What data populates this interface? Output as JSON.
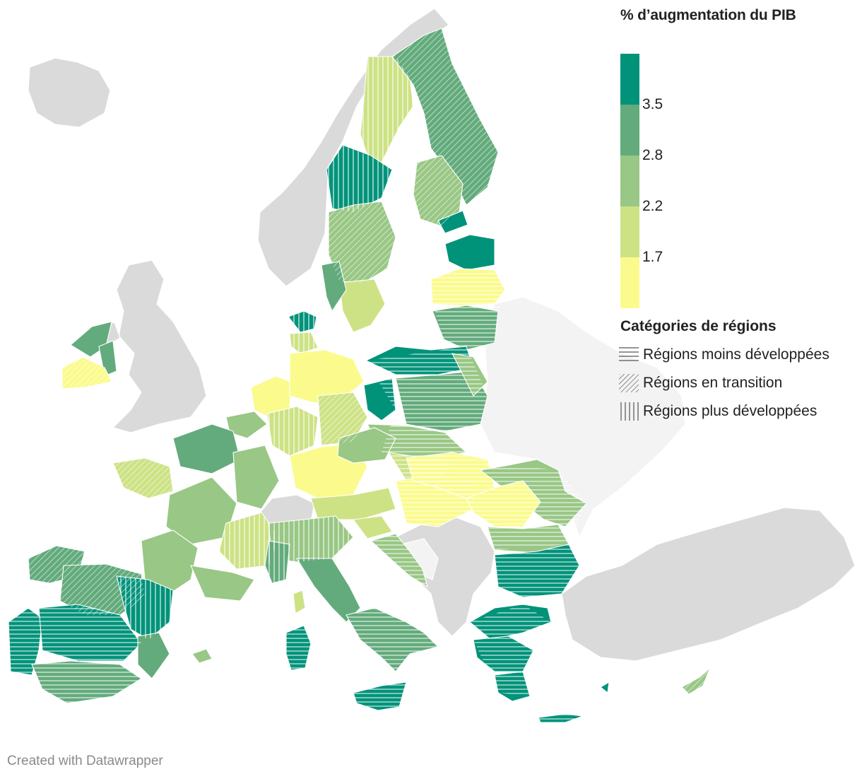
{
  "legend": {
    "title": "% d’augmentation du PIB",
    "bins": [
      {
        "color": "#00937a",
        "label": ""
      },
      {
        "color": "#63ab7c",
        "label": "3.5"
      },
      {
        "color": "#99c785",
        "label": "2.8"
      },
      {
        "color": "#cde285",
        "label": "2.2"
      },
      {
        "color": "#fbfb8d",
        "label": "1.7"
      }
    ],
    "categories_title": "Catégories de régions",
    "categories": [
      {
        "pattern": "horizontal",
        "label": "Régions moins développées"
      },
      {
        "pattern": "diagonal",
        "label": "Régions en transition"
      },
      {
        "pattern": "vertical",
        "label": "Régions plus développées"
      }
    ]
  },
  "colors": {
    "non_eu_land": "#dadada",
    "light_land": "#f3f3f3",
    "border": "#ffffff"
  },
  "footer": "Created with Datawrapper"
}
